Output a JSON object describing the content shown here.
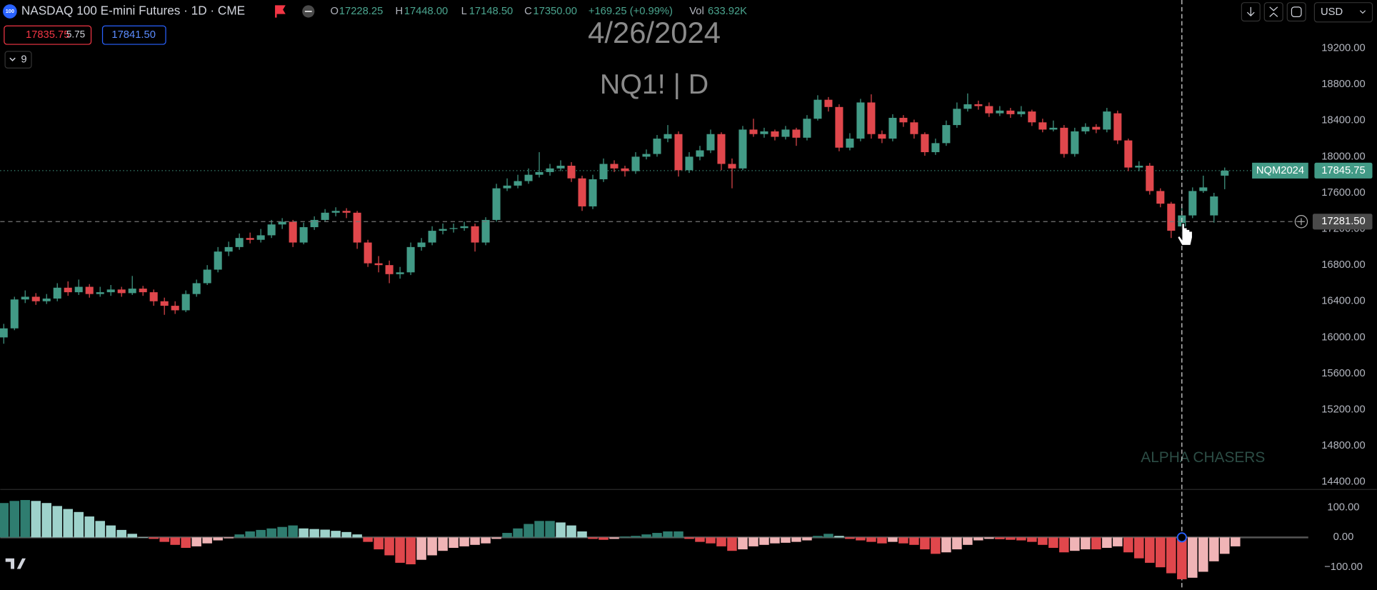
{
  "header": {
    "logo": "100",
    "symbol": "NASDAQ 100 E-mini Futures · 1D · CME",
    "o_label": "O",
    "o": "17228.25",
    "h_label": "H",
    "h": "17448.00",
    "l_label": "L",
    "l": "17148.50",
    "c_label": "C",
    "c": "17350.00",
    "change": "+169.25 (+0.99%)",
    "vol_label": "Vol",
    "vol": "633.92K",
    "bid": "17835.75",
    "spread": "5.75",
    "ask": "17841.50",
    "indicators_count": "9",
    "currency": "USD"
  },
  "chart_data": [
    {
      "type": "candlestick",
      "title": "4/26/2024",
      "subtitle": "NQ1! | D",
      "watermark": "ALPHA CHASERS",
      "up_color": "#429a86",
      "down_color": "#e0474c",
      "ylim": [
        14322,
        19734
      ],
      "yticks": [
        {
          "value": 19200,
          "label": "19200.00"
        },
        {
          "value": 18800,
          "label": "18800.00"
        },
        {
          "value": 18400,
          "label": "18400.00"
        },
        {
          "value": 18000,
          "label": "18000.00"
        },
        {
          "value": 17600,
          "label": "17600.00"
        },
        {
          "value": 17200,
          "label": "17200.00"
        },
        {
          "value": 16800,
          "label": "16800.00"
        },
        {
          "value": 16400,
          "label": "16400.00"
        },
        {
          "value": 16000,
          "label": "16000.00"
        },
        {
          "value": 15600,
          "label": "15600.00"
        },
        {
          "value": 15200,
          "label": "15200.00"
        },
        {
          "value": 14800,
          "label": "14800.00"
        },
        {
          "value": 14400,
          "label": "14400.00"
        }
      ],
      "grid": false,
      "last_price": {
        "name": "NQM2024",
        "value": 17845.75,
        "value_label": "17845.75"
      },
      "crosshair": {
        "value": 17281.5,
        "value_label": "17281.50"
      },
      "ohlc": [
        [
          16000,
          16150,
          15930,
          16100
        ],
        [
          16100,
          16450,
          16080,
          16420
        ],
        [
          16420,
          16520,
          16380,
          16450
        ],
        [
          16450,
          16490,
          16360,
          16400
        ],
        [
          16400,
          16480,
          16370,
          16430
        ],
        [
          16430,
          16600,
          16400,
          16550
        ],
        [
          16550,
          16620,
          16460,
          16500
        ],
        [
          16500,
          16640,
          16470,
          16560
        ],
        [
          16560,
          16590,
          16440,
          16480
        ],
        [
          16480,
          16560,
          16450,
          16500
        ],
        [
          16500,
          16580,
          16460,
          16530
        ],
        [
          16530,
          16560,
          16450,
          16490
        ],
        [
          16490,
          16680,
          16470,
          16540
        ],
        [
          16540,
          16570,
          16460,
          16500
        ],
        [
          16500,
          16530,
          16350,
          16400
        ],
        [
          16400,
          16440,
          16250,
          16350
        ],
        [
          16350,
          16400,
          16260,
          16300
        ],
        [
          16300,
          16520,
          16280,
          16480
        ],
        [
          16480,
          16640,
          16450,
          16600
        ],
        [
          16600,
          16800,
          16580,
          16750
        ],
        [
          16750,
          17000,
          16720,
          16950
        ],
        [
          16950,
          17060,
          16900,
          17000
        ],
        [
          17000,
          17150,
          16970,
          17100
        ],
        [
          17100,
          17160,
          17040,
          17080
        ],
        [
          17080,
          17200,
          17050,
          17130
        ],
        [
          17130,
          17300,
          17100,
          17250
        ],
        [
          17250,
          17320,
          17200,
          17280
        ],
        [
          17280,
          17300,
          17000,
          17050
        ],
        [
          17050,
          17270,
          17030,
          17220
        ],
        [
          17220,
          17340,
          17190,
          17300
        ],
        [
          17300,
          17420,
          17280,
          17380
        ],
        [
          17380,
          17440,
          17340,
          17400
        ],
        [
          17400,
          17430,
          17320,
          17380
        ],
        [
          17380,
          17400,
          16980,
          17050
        ],
        [
          17050,
          17080,
          16780,
          16820
        ],
        [
          16820,
          16900,
          16720,
          16800
        ],
        [
          16800,
          16850,
          16600,
          16700
        ],
        [
          16700,
          16780,
          16650,
          16720
        ],
        [
          16720,
          17050,
          16690,
          17000
        ],
        [
          17000,
          17100,
          16960,
          17050
        ],
        [
          17050,
          17230,
          17020,
          17180
        ],
        [
          17180,
          17260,
          17140,
          17200
        ],
        [
          17200,
          17260,
          17160,
          17210
        ],
        [
          17210,
          17280,
          17180,
          17230
        ],
        [
          17230,
          17260,
          16950,
          17050
        ],
        [
          17050,
          17330,
          17020,
          17300
        ],
        [
          17300,
          17700,
          17280,
          17650
        ],
        [
          17650,
          17760,
          17620,
          17680
        ],
        [
          17680,
          17800,
          17650,
          17730
        ],
        [
          17730,
          17870,
          17700,
          17800
        ],
        [
          17800,
          18050,
          17770,
          17830
        ],
        [
          17830,
          17920,
          17790,
          17870
        ],
        [
          17870,
          17960,
          17840,
          17900
        ],
        [
          17900,
          17940,
          17720,
          17760
        ],
        [
          17760,
          17790,
          17400,
          17450
        ],
        [
          17450,
          17800,
          17420,
          17750
        ],
        [
          17750,
          17980,
          17720,
          17920
        ],
        [
          17920,
          17960,
          17830,
          17870
        ],
        [
          17870,
          17900,
          17780,
          17840
        ],
        [
          17840,
          18050,
          17810,
          18000
        ],
        [
          18000,
          18080,
          17970,
          18030
        ],
        [
          18030,
          18240,
          18000,
          18200
        ],
        [
          18200,
          18350,
          18160,
          18250
        ],
        [
          18250,
          18280,
          17780,
          17850
        ],
        [
          17850,
          18050,
          17820,
          18000
        ],
        [
          18000,
          18120,
          17960,
          18070
        ],
        [
          18070,
          18300,
          18040,
          18250
        ],
        [
          18250,
          18270,
          17850,
          17920
        ],
        [
          17920,
          17980,
          17650,
          17870
        ],
        [
          17870,
          18340,
          17850,
          18300
        ],
        [
          18300,
          18420,
          18220,
          18250
        ],
        [
          18250,
          18320,
          18210,
          18280
        ],
        [
          18280,
          18300,
          18180,
          18220
        ],
        [
          18220,
          18340,
          18190,
          18300
        ],
        [
          18300,
          18320,
          18120,
          18210
        ],
        [
          18210,
          18460,
          18180,
          18420
        ],
        [
          18420,
          18680,
          18400,
          18630
        ],
        [
          18630,
          18660,
          18500,
          18550
        ],
        [
          18550,
          18580,
          18060,
          18100
        ],
        [
          18100,
          18260,
          18070,
          18200
        ],
        [
          18200,
          18640,
          18170,
          18600
        ],
        [
          18600,
          18690,
          18200,
          18250
        ],
        [
          18250,
          18290,
          18150,
          18200
        ],
        [
          18200,
          18470,
          18170,
          18430
        ],
        [
          18430,
          18460,
          18330,
          18380
        ],
        [
          18380,
          18410,
          18200,
          18250
        ],
        [
          18250,
          18270,
          18010,
          18050
        ],
        [
          18050,
          18200,
          18020,
          18150
        ],
        [
          18150,
          18400,
          18120,
          18350
        ],
        [
          18350,
          18600,
          18320,
          18530
        ],
        [
          18530,
          18700,
          18500,
          18580
        ],
        [
          18580,
          18620,
          18520,
          18560
        ],
        [
          18560,
          18600,
          18440,
          18480
        ],
        [
          18480,
          18560,
          18450,
          18510
        ],
        [
          18510,
          18540,
          18430,
          18470
        ],
        [
          18470,
          18560,
          18440,
          18500
        ],
        [
          18500,
          18520,
          18340,
          18380
        ],
        [
          18380,
          18420,
          18270,
          18300
        ],
        [
          18300,
          18400,
          18280,
          18320
        ],
        [
          18320,
          18350,
          17990,
          18030
        ],
        [
          18030,
          18320,
          18000,
          18280
        ],
        [
          18280,
          18370,
          18250,
          18330
        ],
        [
          18330,
          18360,
          18260,
          18300
        ],
        [
          18300,
          18540,
          18270,
          18500
        ],
        [
          18480,
          18510,
          18140,
          18180
        ],
        [
          18180,
          18200,
          17840,
          17880
        ],
        [
          17880,
          17950,
          17840,
          17900
        ],
        [
          17900,
          17930,
          17580,
          17620
        ],
        [
          17620,
          17650,
          17440,
          17480
        ],
        [
          17480,
          17500,
          17100,
          17180.75
        ],
        [
          17228.25,
          17448,
          17148.5,
          17350
        ],
        [
          17350,
          17660,
          17320,
          17620
        ],
        [
          17620,
          17790,
          17600,
          17660
        ],
        [
          17350,
          17600,
          17270,
          17560
        ],
        [
          17790,
          17880,
          17640,
          17845.75
        ]
      ]
    },
    {
      "type": "histogram",
      "colors": {
        "up_rising": "#2f7d70",
        "up_falling": "#9ed2cb",
        "down_falling": "#e0474c",
        "down_rising": "#f0b4b6"
      },
      "ylim": [
        -176,
        153
      ],
      "yticks": [
        {
          "value": 100,
          "label": "100.00"
        },
        {
          "value": 0,
          "label": "0.00"
        },
        {
          "value": -100,
          "label": "−100.00"
        }
      ],
      "values": [
        115,
        122,
        125,
        122,
        115,
        105,
        95,
        85,
        70,
        55,
        40,
        25,
        12,
        0,
        -5,
        -15,
        -25,
        -35,
        -30,
        -20,
        -10,
        -3,
        10,
        20,
        25,
        30,
        35,
        40,
        30,
        28,
        26,
        22,
        18,
        10,
        -15,
        -40,
        -60,
        -85,
        -90,
        -75,
        -60,
        -45,
        -35,
        -30,
        -25,
        -20,
        -5,
        15,
        30,
        45,
        55,
        55,
        50,
        40,
        20,
        -5,
        -8,
        -5,
        3,
        5,
        10,
        15,
        20,
        20,
        -5,
        -15,
        -20,
        -30,
        -45,
        -40,
        -30,
        -25,
        -20,
        -18,
        -15,
        -10,
        5,
        12,
        5,
        -5,
        -10,
        -15,
        -20,
        -15,
        -20,
        -25,
        -40,
        -55,
        -50,
        -40,
        -25,
        -10,
        -5,
        -6,
        -8,
        -10,
        -15,
        -25,
        -35,
        -50,
        -45,
        -40,
        -40,
        -35,
        -30,
        -50,
        -70,
        -85,
        -100,
        -120,
        -140,
        -135,
        -115,
        -80,
        -55,
        -30
      ]
    }
  ]
}
